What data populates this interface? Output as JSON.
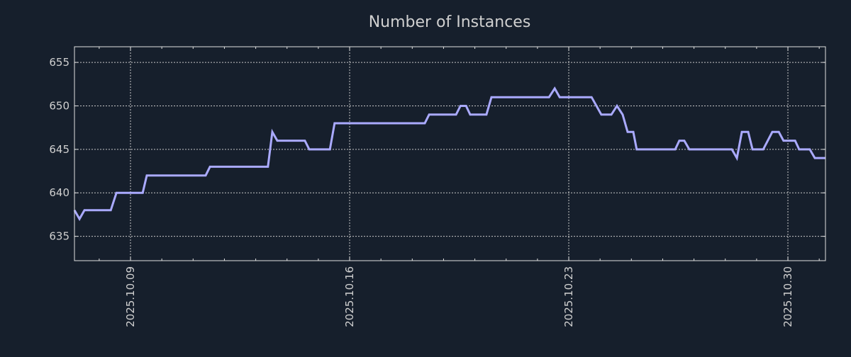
{
  "chart_data": {
    "type": "line",
    "title": "Number of Instances",
    "xlabel": "",
    "ylabel": "",
    "x_unit": "day of October 2025",
    "xlim": [
      7.21,
      31.2
    ],
    "ylim": [
      632.2,
      656.8
    ],
    "grid": true,
    "x_ticks": [
      {
        "value": 9,
        "label": "2025.10.09"
      },
      {
        "value": 16,
        "label": "2025.10.16"
      },
      {
        "value": 23,
        "label": "2025.10.23"
      },
      {
        "value": 30,
        "label": "2025.10.30"
      }
    ],
    "y_ticks": [
      635,
      640,
      645,
      650,
      655
    ],
    "series": [
      {
        "name": "Number of Instances",
        "color": "#aaaaff",
        "x": [
          7.21,
          7.37,
          7.53,
          8.37,
          8.55,
          9.39,
          9.52,
          11.4,
          11.54,
          13.39,
          13.53,
          13.69,
          14.57,
          14.71,
          15.37,
          15.52,
          18.4,
          18.54,
          19.4,
          19.54,
          19.72,
          19.85,
          20.37,
          20.53,
          22.37,
          22.55,
          22.71,
          23.73,
          24.04,
          24.36,
          24.54,
          24.72,
          24.88,
          25.06,
          25.17,
          26.4,
          26.53,
          26.69,
          26.85,
          28.21,
          28.37,
          28.53,
          28.73,
          28.87,
          29.21,
          29.5,
          29.71,
          29.86,
          30.23,
          30.36,
          30.7,
          30.86,
          31.2
        ],
        "y": [
          638,
          637,
          638,
          638,
          640,
          640,
          642,
          642,
          643,
          643,
          647,
          646,
          646,
          645,
          645,
          648,
          648,
          649,
          649,
          650,
          650,
          649,
          649,
          651,
          651,
          652,
          651,
          651,
          649,
          649,
          650,
          649,
          647,
          647,
          645,
          645,
          646,
          646,
          645,
          645,
          644,
          647,
          647,
          645,
          645,
          647,
          647,
          646,
          646,
          645,
          645,
          644,
          644
        ]
      }
    ],
    "colors": {
      "background": "#161f2c",
      "axes": "#e0e0e0",
      "grid": "#c8c8c8"
    }
  }
}
